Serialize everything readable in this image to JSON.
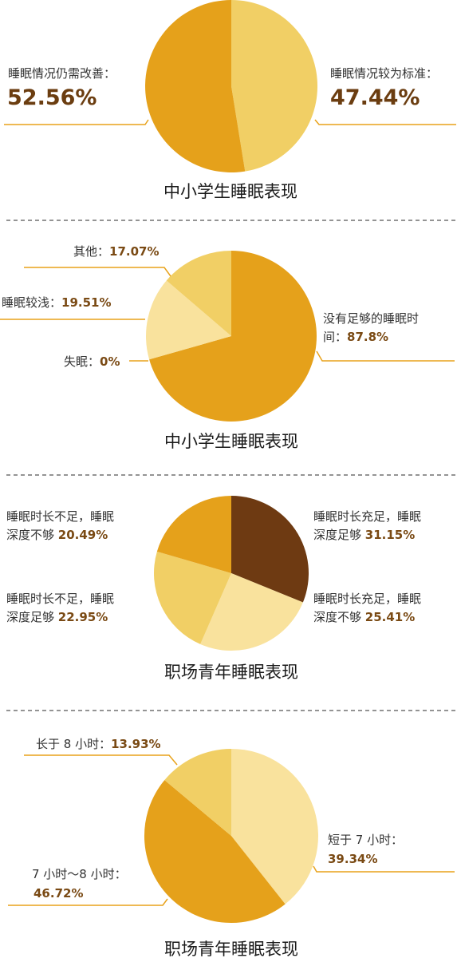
{
  "colors": {
    "dark_gold": "#e5a11b",
    "light_gold": "#f1cf65",
    "pale_gold": "#f9e29d",
    "brown": "#6e3a12",
    "leader": "#e8a21a",
    "value_text": "#7a4a14"
  },
  "chart_data": [
    {
      "type": "pie",
      "title": "中小学生睡眠表现",
      "slices": [
        {
          "label": "睡眠情况较为标准：",
          "value": 47.44,
          "value_text": "47.44%",
          "color": "#f1cf65"
        },
        {
          "label": "睡眠情况仍需改善：",
          "value": 52.56,
          "value_text": "52.56%",
          "color": "#e5a11b"
        }
      ]
    },
    {
      "type": "pie",
      "title": "中小学生睡眠表现",
      "slices": [
        {
          "label": "没有足够的睡眠时间：",
          "value": 87.8,
          "value_text": "87.8%",
          "color": "#e5a11b"
        },
        {
          "label": "失眠：",
          "value": 0,
          "value_text": "0%",
          "color": "#f9e29d"
        },
        {
          "label": "睡眠较浅：",
          "value": 19.51,
          "value_text": "19.51%",
          "color": "#f9e29d"
        },
        {
          "label": "其他：",
          "value": 17.07,
          "value_text": "17.07%",
          "color": "#f1cf65"
        }
      ]
    },
    {
      "type": "pie",
      "title": "职场青年睡眠表现",
      "slices": [
        {
          "label": "睡眠时长充足，睡眠深度足够",
          "value": 31.15,
          "value_text": "31.15%",
          "color": "#6e3a12"
        },
        {
          "label": "睡眠时长充足，睡眠深度不够",
          "value": 25.41,
          "value_text": "25.41%",
          "color": "#f9e29d"
        },
        {
          "label": "睡眠时长不足，睡眠深度足够",
          "value": 22.95,
          "value_text": "22.95%",
          "color": "#f1cf65"
        },
        {
          "label": "睡眠时长不足，睡眠深度不够",
          "value": 20.49,
          "value_text": "20.49%",
          "color": "#e5a11b"
        }
      ]
    },
    {
      "type": "pie",
      "title": "职场青年睡眠表现",
      "slices": [
        {
          "label": "短于 7 小时：",
          "value": 39.34,
          "value_text": "39.34%",
          "color": "#f9e29d"
        },
        {
          "label": "7 小时～8 小时：",
          "value": 46.72,
          "value_text": "46.72%",
          "color": "#e5a11b"
        },
        {
          "label": "长于 8 小时：",
          "value": 13.93,
          "value_text": "13.93%",
          "color": "#f1cf65"
        }
      ]
    }
  ]
}
